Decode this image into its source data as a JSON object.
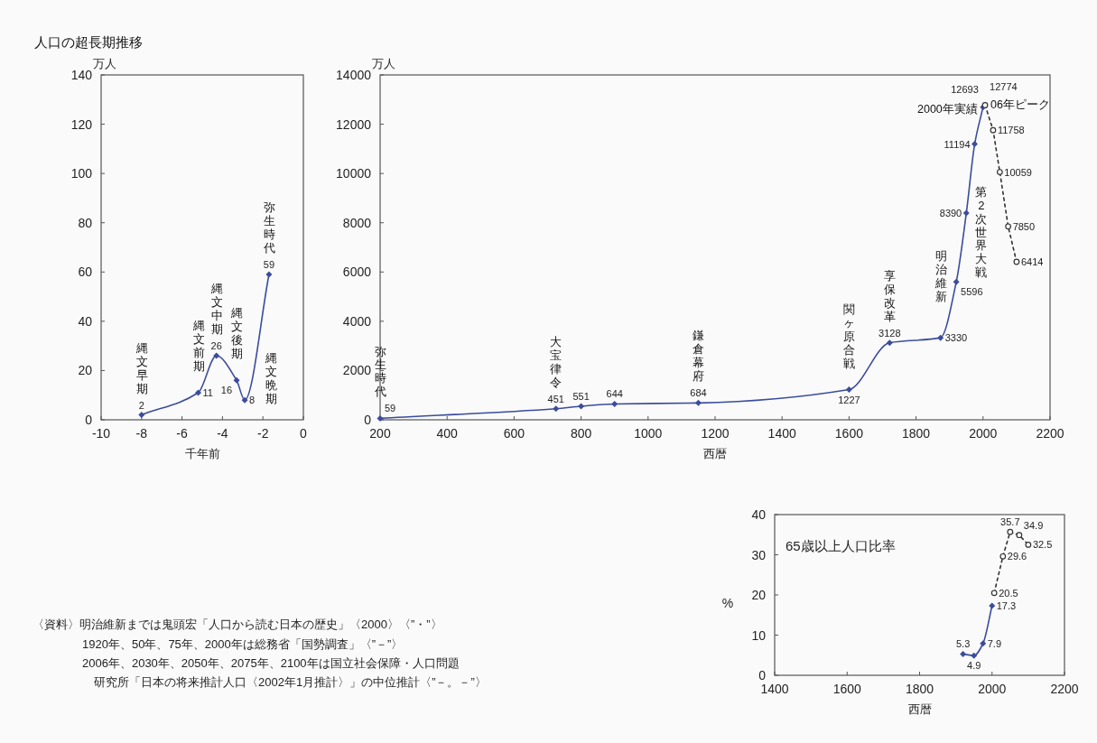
{
  "chart_data": [
    {
      "type": "line",
      "title": "人口の超長期推移",
      "xlabel": "千年前",
      "ylabel": "万人",
      "xlim": [
        -10,
        0
      ],
      "xticks": [
        -10,
        -8,
        -6,
        -4,
        -2,
        0
      ],
      "ylim": [
        0,
        140
      ],
      "yticks": [
        0,
        20,
        40,
        60,
        80,
        100,
        120,
        140
      ],
      "data_labels": true,
      "series": [
        {
          "color": "#3b4c9c",
          "marker": "diamond",
          "line_style": "solid",
          "x": [
            -8,
            -5.2,
            -4.3,
            -3.3,
            -2.9,
            -1.7
          ],
          "values": [
            2,
            11,
            26,
            16,
            8,
            59
          ]
        }
      ],
      "annotations": [
        {
          "text": "縄文早期",
          "x": -8,
          "y": 2
        },
        {
          "text": "縄文前期",
          "x": -5.2,
          "y": 11
        },
        {
          "text": "縄文中期",
          "x": -4.3,
          "y": 26
        },
        {
          "text": "縄文後期",
          "x": -3.3,
          "y": 16
        },
        {
          "text": "縄文晩期",
          "x": -2.9,
          "y": 8
        },
        {
          "text": "弥生時代",
          "x": -1.7,
          "y": 59
        }
      ]
    },
    {
      "type": "line",
      "xlabel": "西暦",
      "ylabel": "万人",
      "xlim": [
        200,
        2200
      ],
      "xticks": [
        200,
        400,
        600,
        800,
        1000,
        1200,
        1400,
        1600,
        1800,
        2000,
        2200
      ],
      "ylim": [
        0,
        14000
      ],
      "yticks": [
        0,
        2000,
        4000,
        6000,
        8000,
        10000,
        12000,
        14000
      ],
      "data_labels": true,
      "series": [
        {
          "color": "#3b4c9c",
          "marker": "diamond",
          "line_style": "solid",
          "x": [
            200,
            725,
            800,
            900,
            1150,
            1600,
            1721,
            1873,
            1920,
            1950,
            1975,
            2000
          ],
          "values": [
            59,
            451,
            551,
            644,
            684,
            1227,
            3128,
            3330,
            5596,
            8390,
            11194,
            12693
          ]
        },
        {
          "color": "#333333",
          "marker": "circle",
          "line_style": "dashed",
          "x": [
            2006,
            2030,
            2050,
            2075,
            2100
          ],
          "values": [
            12774,
            11758,
            10059,
            7850,
            6414
          ]
        }
      ],
      "annotations": [
        {
          "text": "弥生時代",
          "x": 200,
          "y": 59
        },
        {
          "text": "大宝律令",
          "x": 725,
          "y": 451
        },
        {
          "text": "鎌倉幕府",
          "x": 1150,
          "y": 684
        },
        {
          "text": "関ヶ原合戦",
          "x": 1600,
          "y": 1227
        },
        {
          "text": "享保改革",
          "x": 1721,
          "y": 3128
        },
        {
          "text": "明治維新",
          "x": 1873,
          "y": 3330
        },
        {
          "text": "第2次世界大戦",
          "x": 1950,
          "y": 8390
        },
        {
          "text": "2000年実績",
          "x": 2000,
          "y": 12693
        },
        {
          "text": "06年ピーク",
          "x": 2006,
          "y": 12774
        },
        "〈資料〉明治維新までは鬼頭宏「人口から読む日本の歴史」〈2000〉〈”・”〉",
        "1920年、50年、75年、2000年は総務省「国勢調査」〈”－”〉",
        "2006年、2030年、2050年、2075年、2100年は国立社会保障・人口問題",
        "研究所「日本の将来推計人口〈2002年1月推計〉」の中位推計〈”－。－”〉"
      ]
    },
    {
      "type": "line",
      "xlabel": "西暦",
      "ylabel": "%",
      "xlim": [
        1400,
        2200
      ],
      "xticks": [
        1400,
        1600,
        1800,
        2000,
        2200
      ],
      "ylim": [
        0,
        40
      ],
      "yticks": [
        0,
        10,
        20,
        30,
        40
      ],
      "data_labels": true,
      "series": [
        {
          "color": "#3b4c9c",
          "marker": "diamond",
          "line_style": "solid",
          "x": [
            1920,
            1950,
            1975,
            2000
          ],
          "values": [
            5.3,
            4.9,
            7.9,
            17.3
          ]
        },
        {
          "color": "#333333",
          "marker": "circle",
          "line_style": "dashed",
          "x": [
            2006,
            2030,
            2050,
            2075,
            2100
          ],
          "values": [
            20.5,
            29.6,
            35.7,
            34.9,
            32.5
          ]
        }
      ],
      "annotations": [
        "65歳以上人口比率"
      ]
    }
  ]
}
